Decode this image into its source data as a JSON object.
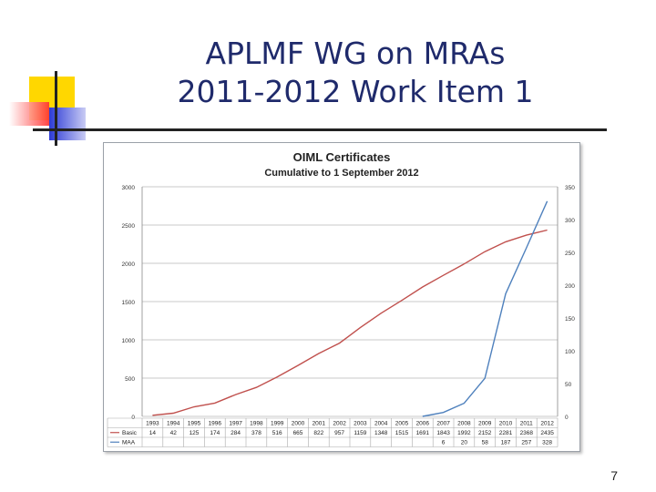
{
  "slide": {
    "title_line1": "APLMF WG on MRAs",
    "title_line2": "2011-2012 Work Item 1",
    "page_number": "7"
  },
  "colors": {
    "title": "#1f2a6b",
    "basic_series": "#c0504d",
    "maa_series": "#4f81bd",
    "deco_yellow": "#ffd700",
    "deco_red": "#ff3030",
    "deco_blue": "#2d3bd6"
  },
  "chart_data": {
    "type": "line",
    "title": "OIML Certificates",
    "subtitle": "Cumulative to 1 September 2012",
    "categories": [
      "1993",
      "1994",
      "1995",
      "1996",
      "1997",
      "1998",
      "1999",
      "2000",
      "2001",
      "2002",
      "2003",
      "2004",
      "2005",
      "2006",
      "2007",
      "2008",
      "2009",
      "2010",
      "2011",
      "2012"
    ],
    "ylim_left": [
      0,
      3000
    ],
    "yticks_left": [
      0,
      500,
      1000,
      1500,
      2000,
      2500,
      3000
    ],
    "ylim_right": [
      0,
      350
    ],
    "yticks_right": [
      0,
      50,
      100,
      150,
      200,
      250,
      300,
      350
    ],
    "grid": true,
    "legend": "table-below",
    "series": [
      {
        "name": "Basic",
        "axis": "left",
        "color": "#c0504d",
        "values": [
          14,
          42,
          125,
          174,
          284,
          378,
          516,
          665,
          822,
          957,
          1159,
          1348,
          1515,
          1691,
          1843,
          1992,
          2152,
          2281,
          2368,
          2435
        ],
        "table_labels": [
          "14",
          "42",
          "125",
          "174",
          "284",
          "378",
          "516",
          "665",
          "822",
          "957",
          "1159",
          "1348",
          "1515",
          "1691",
          "1843",
          "1992",
          "2152",
          "2281",
          "2368",
          "2435"
        ]
      },
      {
        "name": "MAA",
        "axis": "right",
        "color": "#4f81bd",
        "values": [
          null,
          null,
          null,
          null,
          null,
          null,
          null,
          null,
          null,
          null,
          null,
          null,
          null,
          null,
          6,
          20,
          58,
          187,
          257,
          328
        ],
        "table_labels": [
          "",
          "",
          "",
          "",
          "",
          "",
          "",
          "",
          "",
          "",
          "",
          "",
          "",
          "",
          "6",
          "20",
          "58",
          "187",
          "257",
          "328"
        ]
      }
    ]
  }
}
